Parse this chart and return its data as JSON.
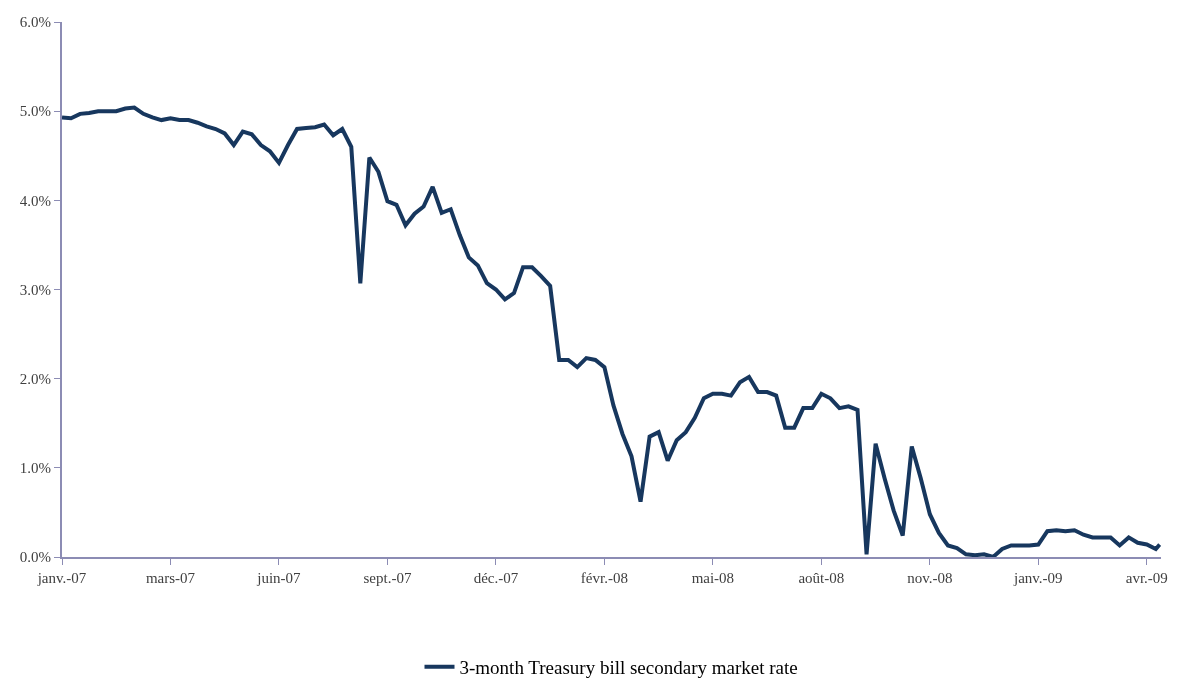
{
  "chart_data": {
    "type": "line",
    "x": [
      "2007-01-02",
      "2007-01-09",
      "2007-01-16",
      "2007-01-23",
      "2007-01-30",
      "2007-02-06",
      "2007-02-13",
      "2007-02-20",
      "2007-02-27",
      "2007-03-06",
      "2007-03-13",
      "2007-03-20",
      "2007-03-27",
      "2007-04-03",
      "2007-04-10",
      "2007-04-17",
      "2007-04-24",
      "2007-05-01",
      "2007-05-08",
      "2007-05-15",
      "2007-05-22",
      "2007-05-29",
      "2007-06-05",
      "2007-06-12",
      "2007-06-19",
      "2007-06-26",
      "2007-07-03",
      "2007-07-10",
      "2007-07-17",
      "2007-07-24",
      "2007-07-31",
      "2007-08-07",
      "2007-08-14",
      "2007-08-21",
      "2007-08-28",
      "2007-09-04",
      "2007-09-11",
      "2007-09-18",
      "2007-09-25",
      "2007-10-02",
      "2007-10-09",
      "2007-10-16",
      "2007-10-23",
      "2007-10-30",
      "2007-11-06",
      "2007-11-13",
      "2007-11-20",
      "2007-11-27",
      "2007-12-04",
      "2007-12-11",
      "2007-12-18",
      "2007-12-25",
      "2008-01-01",
      "2008-01-08",
      "2008-01-15",
      "2008-01-22",
      "2008-01-29",
      "2008-02-05",
      "2008-02-12",
      "2008-02-19",
      "2008-02-26",
      "2008-03-04",
      "2008-03-11",
      "2008-03-18",
      "2008-03-25",
      "2008-04-01",
      "2008-04-08",
      "2008-04-15",
      "2008-04-22",
      "2008-04-29",
      "2008-05-06",
      "2008-05-13",
      "2008-05-20",
      "2008-05-27",
      "2008-06-03",
      "2008-06-10",
      "2008-06-17",
      "2008-06-24",
      "2008-07-01",
      "2008-07-08",
      "2008-07-15",
      "2008-07-22",
      "2008-07-29",
      "2008-08-05",
      "2008-08-12",
      "2008-08-19",
      "2008-08-26",
      "2008-09-02",
      "2008-09-09",
      "2008-09-16",
      "2008-09-23",
      "2008-09-30",
      "2008-10-07",
      "2008-10-14",
      "2008-10-21",
      "2008-10-28",
      "2008-11-04",
      "2008-11-11",
      "2008-11-18",
      "2008-11-25",
      "2008-12-02",
      "2008-12-09",
      "2008-12-16",
      "2008-12-23",
      "2008-12-30",
      "2009-01-06",
      "2009-01-13",
      "2009-01-20",
      "2009-01-27",
      "2009-02-03",
      "2009-02-10",
      "2009-02-17",
      "2009-02-24",
      "2009-03-03",
      "2009-03-10",
      "2009-03-17",
      "2009-03-24",
      "2009-03-31",
      "2009-04-07",
      "2009-04-14",
      "2009-04-21",
      "2009-04-28",
      "2009-05-01"
    ],
    "series": [
      {
        "name": "3-month Treasury bill secondary market rate",
        "color": "#17375e",
        "values": [
          4.93,
          4.92,
          4.97,
          4.98,
          5.0,
          5.0,
          5.0,
          5.03,
          5.04,
          4.97,
          4.93,
          4.9,
          4.92,
          4.9,
          4.9,
          4.87,
          4.83,
          4.8,
          4.75,
          4.62,
          4.77,
          4.74,
          4.62,
          4.55,
          4.42,
          4.62,
          4.8,
          4.81,
          4.82,
          4.85,
          4.73,
          4.8,
          4.6,
          3.07,
          4.48,
          4.32,
          3.99,
          3.95,
          3.72,
          3.85,
          3.93,
          4.15,
          3.86,
          3.9,
          3.61,
          3.36,
          3.27,
          3.07,
          3.0,
          2.89,
          2.96,
          3.25,
          3.25,
          3.15,
          3.04,
          2.21,
          2.21,
          2.13,
          2.23,
          2.21,
          2.13,
          1.7,
          1.38,
          1.13,
          0.62,
          1.35,
          1.4,
          1.08,
          1.31,
          1.4,
          1.56,
          1.78,
          1.83,
          1.83,
          1.81,
          1.96,
          2.02,
          1.85,
          1.85,
          1.81,
          1.45,
          1.45,
          1.67,
          1.67,
          1.83,
          1.78,
          1.67,
          1.69,
          1.65,
          0.03,
          1.27,
          0.88,
          0.52,
          0.24,
          1.24,
          0.88,
          0.48,
          0.27,
          0.13,
          0.1,
          0.03,
          0.02,
          0.03,
          0.0,
          0.09,
          0.13,
          0.13,
          0.13,
          0.14,
          0.29,
          0.3,
          0.29,
          0.3,
          0.25,
          0.22,
          0.22,
          0.22,
          0.13,
          0.22,
          0.16,
          0.14,
          0.09,
          0.14
        ]
      }
    ],
    "xlim": [
      "2007-01-02",
      "2009-05-02"
    ],
    "xticks": [
      {
        "value": "2007-01-02",
        "label": "janv.-07"
      },
      {
        "value": "2007-03-27",
        "label": "mars-07"
      },
      {
        "value": "2007-06-19",
        "label": "juin-07"
      },
      {
        "value": "2007-09-11",
        "label": "sept.-07"
      },
      {
        "value": "2007-12-04",
        "label": "déc.-07"
      },
      {
        "value": "2008-02-26",
        "label": "févr.-08"
      },
      {
        "value": "2008-05-20",
        "label": "mai-08"
      },
      {
        "value": "2008-08-12",
        "label": "août-08"
      },
      {
        "value": "2008-11-04",
        "label": "nov.-08"
      },
      {
        "value": "2009-01-27",
        "label": "janv.-09"
      },
      {
        "value": "2009-04-21",
        "label": "avr.-09"
      }
    ],
    "ylim": [
      0,
      6
    ],
    "yticks": [
      {
        "value": 0,
        "label": "0.0%"
      },
      {
        "value": 1,
        "label": "1.0%"
      },
      {
        "value": 2,
        "label": "2.0%"
      },
      {
        "value": 3,
        "label": "3.0%"
      },
      {
        "value": 4,
        "label": "4.0%"
      },
      {
        "value": 5,
        "label": "5.0%"
      },
      {
        "value": 6,
        "label": "6.0%"
      }
    ],
    "legend": "bottom",
    "marker": "none",
    "line_style": "solid"
  }
}
